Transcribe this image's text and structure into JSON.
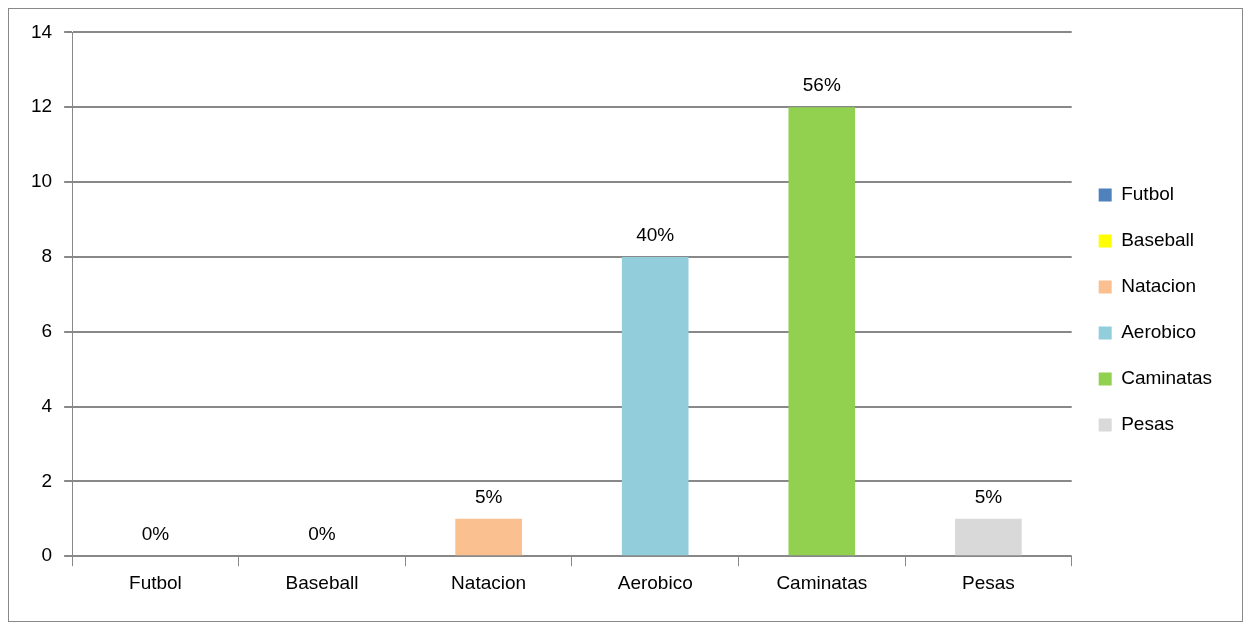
{
  "chart_data": {
    "type": "bar",
    "categories": [
      "Futbol",
      "Baseball",
      "Natacion",
      "Aerobico",
      "Caminatas",
      "Pesas"
    ],
    "series": [
      {
        "name": "Futbol",
        "color": "#4f81bd",
        "values": [
          0,
          null,
          null,
          null,
          null,
          null
        ]
      },
      {
        "name": "Baseball",
        "color": "#ffff00",
        "values": [
          null,
          0,
          null,
          null,
          null,
          null
        ]
      },
      {
        "name": "Natacion",
        "color": "#fac090",
        "values": [
          null,
          null,
          1,
          null,
          null,
          null
        ]
      },
      {
        "name": "Aerobico",
        "color": "#92cddc",
        "values": [
          null,
          null,
          null,
          8,
          null,
          null
        ]
      },
      {
        "name": "Caminatas",
        "color": "#92d050",
        "values": [
          null,
          null,
          null,
          null,
          12,
          null
        ]
      },
      {
        "name": "Pesas",
        "color": "#d9d9d9",
        "values": [
          null,
          null,
          null,
          null,
          null,
          1
        ]
      }
    ],
    "annotations": [
      {
        "text": "0%",
        "x": "Futbol",
        "y": 0
      },
      {
        "text": "0%",
        "x": "Baseball",
        "y": 0
      },
      {
        "text": "5%",
        "x": "Natacion",
        "y": 1
      },
      {
        "text": "40%",
        "x": "Aerobico",
        "y": 8
      },
      {
        "text": "56%",
        "x": "Caminatas",
        "y": 12
      },
      {
        "text": "5%",
        "x": "Pesas",
        "y": 1
      }
    ],
    "ylim": [
      0,
      14
    ],
    "yticks": [
      0,
      2,
      4,
      6,
      8,
      10,
      12,
      14
    ],
    "grid": "y",
    "legend": "right"
  }
}
